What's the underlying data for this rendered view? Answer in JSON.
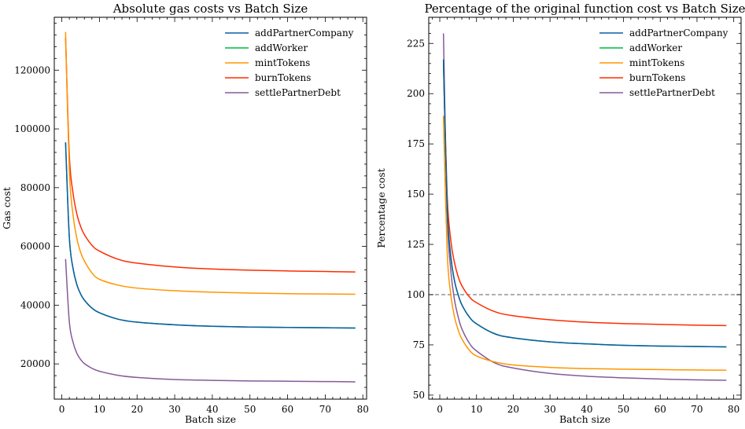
{
  "chart_data": [
    {
      "type": "line",
      "title": "Absolute gas costs vs Batch Size",
      "xlabel": "Batch size",
      "ylabel": "Gas cost",
      "xlim": [
        -2,
        81
      ],
      "ylim": [
        8000,
        138000
      ],
      "xticks": [
        0,
        10,
        20,
        30,
        40,
        50,
        60,
        70,
        80
      ],
      "yticks": [
        20000,
        40000,
        60000,
        80000,
        100000,
        120000
      ],
      "legend_position": "top-right",
      "grid": false,
      "x": [
        1,
        2,
        3,
        4,
        5,
        6,
        8,
        10,
        15,
        20,
        30,
        40,
        50,
        60,
        70,
        78
      ],
      "series": [
        {
          "name": "addPartnerCompany",
          "color": "#0C5DA5",
          "values": [
            95400,
            63100,
            52400,
            47000,
            43800,
            41700,
            39000,
            37400,
            35200,
            34200,
            33300,
            32800,
            32550,
            32400,
            32300,
            32200
          ]
        },
        {
          "name": "addWorker",
          "color": "#00B945",
          "values": [
            95400,
            63100,
            52400,
            47000,
            43800,
            41700,
            39000,
            37400,
            35200,
            34200,
            33300,
            32800,
            32550,
            32400,
            32300,
            32200
          ]
        },
        {
          "name": "mintTokens",
          "color": "#FF9500",
          "values": [
            133000,
            86000,
            70500,
            62700,
            58000,
            55000,
            51000,
            48800,
            46800,
            45800,
            44900,
            44400,
            44100,
            43900,
            43800,
            43700
          ]
        },
        {
          "name": "burnTokens",
          "color": "#FF2C00",
          "values": [
            131000,
            91000,
            78000,
            71000,
            66800,
            64000,
            60400,
            58400,
            55600,
            54300,
            53000,
            52300,
            51900,
            51650,
            51450,
            51300
          ]
        },
        {
          "name": "settlePartnerDebt",
          "color": "#845B97",
          "values": [
            55700,
            34300,
            27300,
            23600,
            21500,
            20100,
            18500,
            17500,
            16100,
            15400,
            14700,
            14400,
            14200,
            14100,
            14000,
            13900
          ]
        }
      ]
    },
    {
      "type": "line",
      "title": "Percentage of the original function cost vs Batch Size",
      "xlabel": "Batch size",
      "ylabel": "Percentage cost",
      "xlim": [
        -3,
        82
      ],
      "ylim": [
        48,
        238
      ],
      "xticks": [
        0,
        10,
        20,
        30,
        40,
        50,
        60,
        70,
        80
      ],
      "yticks": [
        50,
        75,
        100,
        125,
        150,
        175,
        200,
        225
      ],
      "reference_line": 100,
      "legend_position": "top-right",
      "grid": false,
      "x": [
        1,
        2,
        3,
        4,
        5,
        6,
        8,
        10,
        15,
        20,
        30,
        40,
        50,
        60,
        70,
        78
      ],
      "series": [
        {
          "name": "addPartnerCompany",
          "color": "#0C5DA5",
          "values": [
            217,
            144,
            119,
            107,
            100,
            95,
            89,
            85.5,
            80.5,
            78.5,
            76.5,
            75.5,
            74.8,
            74.4,
            74.2,
            74
          ]
        },
        {
          "name": "addWorker",
          "color": "#00B945",
          "values": [
            217,
            144,
            119,
            107,
            100,
            95,
            89,
            85.5,
            80.5,
            78.5,
            76.5,
            75.5,
            74.8,
            74.4,
            74.2,
            74
          ]
        },
        {
          "name": "mintTokens",
          "color": "#FF9500",
          "values": [
            189,
            122,
            100,
            89,
            82.5,
            78,
            72.5,
            69.5,
            66.5,
            65,
            63.8,
            63.2,
            62.9,
            62.7,
            62.5,
            62.4
          ]
        },
        {
          "name": "burnTokens",
          "color": "#FF2C00",
          "values": [
            215,
            150,
            127,
            116,
            109,
            104.5,
            99,
            96,
            91.5,
            89.5,
            87.5,
            86.3,
            85.6,
            85.2,
            84.8,
            84.6
          ]
        },
        {
          "name": "settlePartnerDebt",
          "color": "#845B97",
          "values": [
            230,
            141,
            112,
            97.5,
            89,
            83,
            76,
            72,
            66,
            63.5,
            60.8,
            59.4,
            58.6,
            58,
            57.6,
            57.4
          ]
        }
      ]
    }
  ]
}
